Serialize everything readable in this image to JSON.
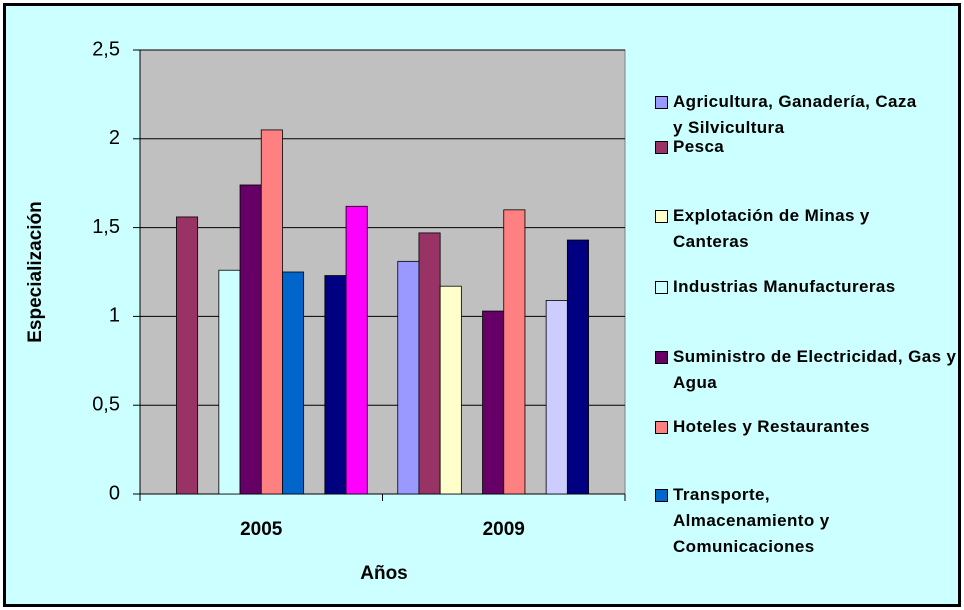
{
  "chart_data": {
    "type": "bar",
    "x_label": "Años",
    "y_label": "Especialización",
    "categories": [
      "2005",
      "2009"
    ],
    "ylim": [
      0,
      2.5
    ],
    "yticks": [
      0,
      {
        "value": 0.5,
        "label": "0,5"
      },
      1,
      {
        "value": 1.5,
        "label": "1,5"
      },
      2,
      {
        "value": 2.5,
        "label": "2,5"
      }
    ],
    "grid": true,
    "legend": "right",
    "series": [
      {
        "name": "Agricultura, Ganadería, Caza y Silvicultura",
        "color": "#9999ff",
        "values": [
          null,
          1.31
        ]
      },
      {
        "name": "Pesca",
        "color": "#993366",
        "values": [
          1.56,
          1.47
        ]
      },
      {
        "name": "Explotación de Minas y Canteras",
        "color": "#ffffcc",
        "values": [
          null,
          1.17
        ]
      },
      {
        "name": "Industrias Manufactureras",
        "color": "#ccffff",
        "values": [
          1.26,
          null
        ]
      },
      {
        "name": "Suministro de Electricidad, Gas y Agua",
        "color": "#660066",
        "values": [
          1.74,
          1.03
        ]
      },
      {
        "name": "Hoteles y Restaurantes",
        "color": "#ff8080",
        "values": [
          2.05,
          1.6
        ]
      },
      {
        "name": "Transporte, Almacenamiento y Comunicaciones",
        "color": "#0066cc",
        "values": [
          1.25,
          null
        ]
      },
      {
        "color": "#ccccff",
        "values": [
          null,
          1.09
        ]
      },
      {
        "color": "#000080",
        "values": [
          1.23,
          1.43
        ]
      },
      {
        "color": "#ff00ff",
        "values": [
          1.62,
          null
        ]
      }
    ]
  }
}
